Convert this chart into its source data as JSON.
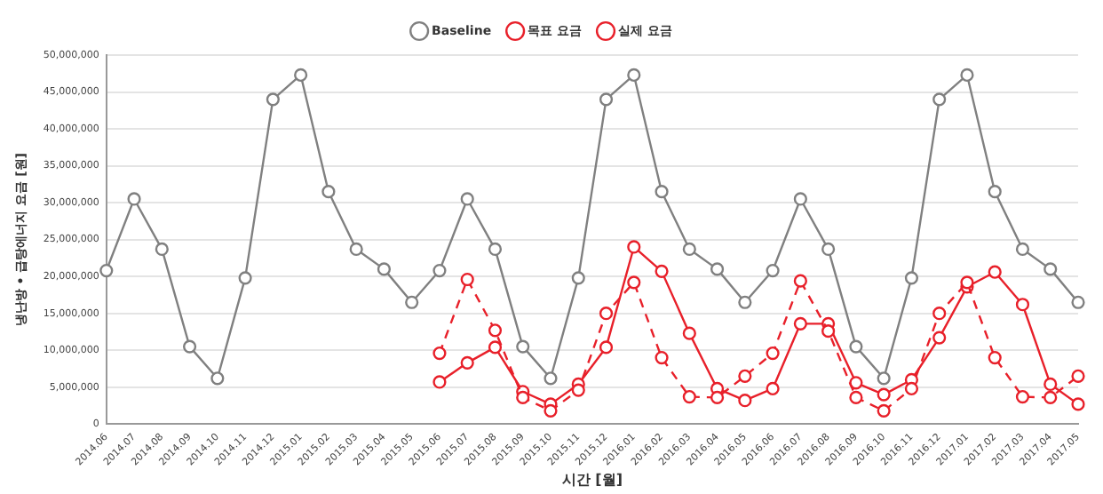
{
  "chart_data": {
    "type": "line",
    "xlabel": "시간 [월]",
    "ylabel": "냉난방 • 급탕에너지 요금 [원]",
    "categories": [
      "2014.06",
      "2014.07",
      "2014.08",
      "2014.09",
      "2014.10",
      "2014.11",
      "2014.12",
      "2015.01",
      "2015.02",
      "2015.03",
      "2015.04",
      "2015.05",
      "2015.06",
      "2015.07",
      "2015.08",
      "2015.09",
      "2015.10",
      "2015.11",
      "2015.12",
      "2016.01",
      "2016.02",
      "2016.03",
      "2016.04",
      "2016.05",
      "2016.06",
      "2016.07",
      "2016.08",
      "2016.09",
      "2016.10",
      "2016.11",
      "2016.12",
      "2017.01",
      "2017.02",
      "2017.03",
      "2017.04",
      "2017.05"
    ],
    "series": [
      {
        "name": "Baseline",
        "color": "#808080",
        "line_style": "solid",
        "values": [
          20800000,
          30500000,
          23700000,
          10500000,
          6200000,
          19800000,
          44000000,
          47300000,
          31500000,
          23700000,
          21000000,
          16500000,
          20800000,
          30500000,
          23700000,
          10500000,
          6200000,
          19800000,
          44000000,
          47300000,
          31500000,
          23700000,
          21000000,
          16500000,
          20800000,
          30500000,
          23700000,
          10500000,
          6200000,
          19800000,
          44000000,
          47300000,
          31500000,
          23700000,
          21000000,
          16500000
        ]
      },
      {
        "name": "목표 요금",
        "color": "#e8202a",
        "line_style": "dashed",
        "values": [
          null,
          null,
          null,
          null,
          null,
          null,
          null,
          null,
          null,
          null,
          null,
          null,
          9600000,
          19600000,
          12700000,
          3600000,
          1800000,
          4600000,
          15000000,
          19200000,
          9000000,
          3700000,
          3600000,
          6500000,
          9600000,
          19400000,
          12600000,
          3600000,
          1800000,
          4800000,
          15000000,
          19200000,
          9000000,
          3700000,
          3600000,
          6500000
        ]
      },
      {
        "name": "실제 요금",
        "color": "#e8202a",
        "line_style": "solid",
        "values": [
          null,
          null,
          null,
          null,
          null,
          null,
          null,
          null,
          null,
          null,
          null,
          null,
          5700000,
          8300000,
          10400000,
          4400000,
          2700000,
          5400000,
          10400000,
          24000000,
          20700000,
          12300000,
          4800000,
          3200000,
          4800000,
          13600000,
          13600000,
          5600000,
          4000000,
          6000000,
          11700000,
          18600000,
          20600000,
          16200000,
          5400000,
          2700000
        ]
      }
    ],
    "ylim": [
      0,
      50000000
    ],
    "yticks": [
      0,
      {
        "value": 5000000,
        "label": "5,000,000"
      },
      {
        "value": 10000000,
        "label": "10,000,000"
      },
      {
        "value": 15000000,
        "label": "15,000,000"
      },
      {
        "value": 20000000,
        "label": "20,000,000"
      },
      {
        "value": 25000000,
        "label": "25,000,000"
      },
      {
        "value": 30000000,
        "label": "30,000,000"
      },
      {
        "value": 35000000,
        "label": "35,000,000"
      },
      {
        "value": 40000000,
        "label": "40,000,000"
      },
      {
        "value": 45000000,
        "label": "45,000,000"
      },
      {
        "value": 50000000,
        "label": "50,000,000"
      }
    ],
    "grid": "y",
    "legend": "top",
    "marker": "circle"
  }
}
